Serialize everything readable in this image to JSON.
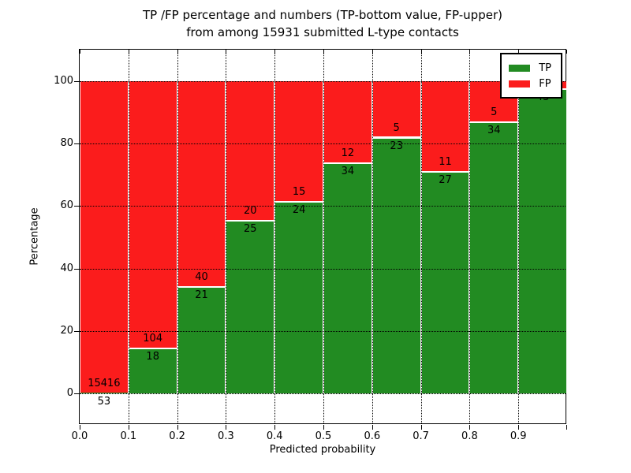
{
  "title": {
    "line1": "TP /FP percentage and numbers (TP-bottom value, FP-upper)",
    "line2": "from among 15931 submitted L-type contacts"
  },
  "axes": {
    "xlabel": "Predicted probability",
    "ylabel": "Percentage",
    "x_tick_labels": [
      "0.0",
      "0.1",
      "0.2",
      "0.3",
      "0.4",
      "0.5",
      "0.6",
      "0.7",
      "0.8",
      "0.9"
    ],
    "y_tick_labels": [
      "0",
      "20",
      "40",
      "60",
      "80",
      "100"
    ],
    "y_ticks": [
      0,
      20,
      40,
      60,
      80,
      100
    ],
    "xlim": [
      0.0,
      1.0
    ],
    "ylim": [
      -10,
      110
    ],
    "grid": "dotted"
  },
  "legend": {
    "position": "upper right",
    "items": [
      {
        "label": "TP",
        "color": "#228b22"
      },
      {
        "label": "FP",
        "color": "#fb1c1c"
      }
    ]
  },
  "chart_data": {
    "type": "bar",
    "stacked": true,
    "normalized_to_percent": true,
    "title": "TP /FP percentage and numbers (TP-bottom value, FP-upper) from among 15931 submitted L-type contacts",
    "xlabel": "Predicted probability",
    "ylabel": "Percentage",
    "total_contacts": 15931,
    "bin_edges": [
      0.0,
      0.1,
      0.2,
      0.3,
      0.4,
      0.5,
      0.6,
      0.7,
      0.8,
      0.9,
      1.0
    ],
    "bins": [
      "0.0-0.1",
      "0.1-0.2",
      "0.2-0.3",
      "0.3-0.4",
      "0.4-0.5",
      "0.5-0.6",
      "0.6-0.7",
      "0.7-0.8",
      "0.8-0.9",
      "0.9-1.0"
    ],
    "series": [
      {
        "name": "TP",
        "color": "#228b22",
        "counts": [
          53,
          18,
          21,
          25,
          24,
          34,
          23,
          27,
          34,
          43
        ]
      },
      {
        "name": "FP",
        "color": "#fb1c1c",
        "counts": [
          15416,
          104,
          40,
          20,
          15,
          12,
          5,
          11,
          5,
          1
        ]
      }
    ],
    "tp_percent": [
      0.34,
      14.75,
      34.43,
      55.56,
      61.54,
      73.91,
      82.14,
      71.05,
      87.18,
      97.73
    ],
    "visible_labels": {
      "tp": [
        "53",
        "18",
        "21",
        "25",
        "24",
        "34",
        "23",
        "27",
        "34",
        "43"
      ],
      "fp": [
        "15416",
        "104",
        "40",
        "20",
        "15",
        "12",
        "5",
        "11",
        "5",
        ""
      ]
    }
  }
}
